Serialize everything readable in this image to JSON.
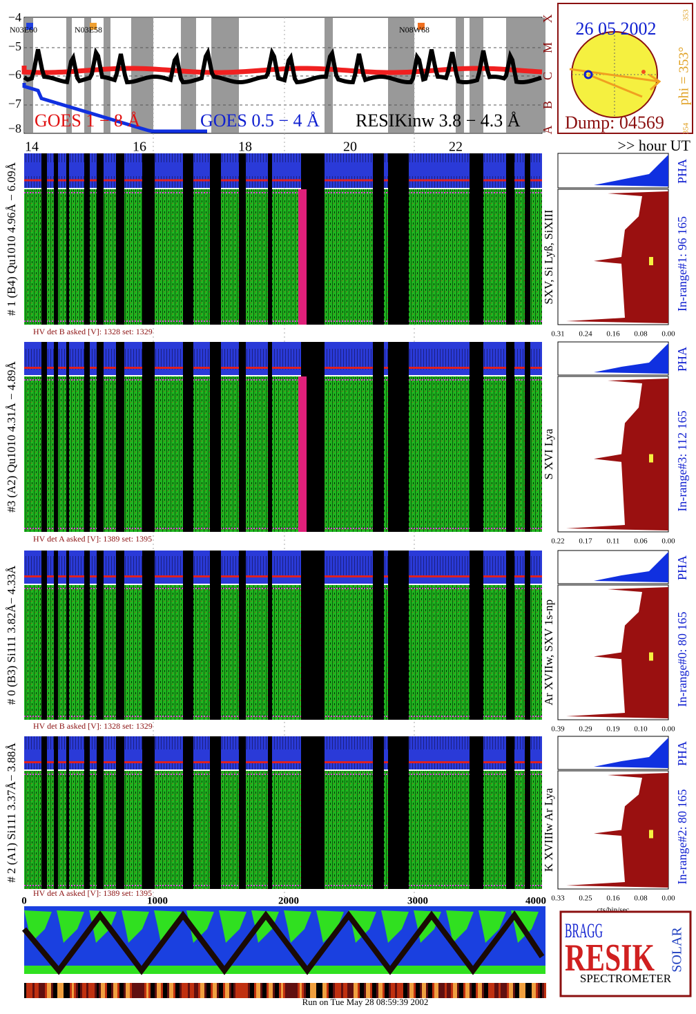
{
  "goes": {
    "yticks": [
      "−4",
      "−5",
      "−6",
      "−7",
      "−8"
    ],
    "class_labels": [
      "X",
      "M",
      "C",
      "B",
      "A"
    ],
    "regions": [
      "N03E60",
      "N03E58",
      "N08W68"
    ],
    "legend": [
      "GOES 1 − 8 Å",
      "GOES 0.5 − 4 Å",
      "RESIKinw 3.8 − 4.3 Å"
    ],
    "xticks": [
      "14",
      "16",
      "18",
      "20",
      "22"
    ],
    "x_unit": ">> hour UT"
  },
  "sun": {
    "date": "26 05 2002",
    "dump": "Dump: 04569",
    "phi": "phi = 353°",
    "phi_small": "353",
    "small": "354"
  },
  "detectors": [
    {
      "label": "# 1 (B4) Qu1010 4.96Å − 6.09Å",
      "lines": "SXV, Si Lyß, SiXIII",
      "hv": "HV det B asked [V]:  1328 set:  1329",
      "pha": "PHA",
      "range": "In-range#1:   96 165",
      "ticks": [
        "0.31",
        "0.24",
        "0.16",
        "0.08",
        "0.00"
      ]
    },
    {
      "label": "#3 (A2) Qu1010  4.31Å − 4.89Å",
      "lines": "S XVI Lya",
      "hv": "HV det A asked [V]:  1389 set:  1395",
      "pha": "PHA",
      "range": "In-range#3:   112 165",
      "ticks": [
        "0.22",
        "0.17",
        "0.11",
        "0.06",
        "0.00"
      ]
    },
    {
      "label": "# 0 (B3) Si111  3.82Å− 4.33Å",
      "lines": "Ar XVIIw,  SXV 1s-np",
      "hv": "HV det B asked [V]:  1328 set:  1329",
      "pha": "PHA",
      "range": "In-range#0:   80 165",
      "ticks": [
        "0.39",
        "0.29",
        "0.19",
        "0.10",
        "0.00"
      ]
    },
    {
      "label": "# 2 (A1) Si111  3.37Å− 3.88Å",
      "lines": "K XVIIIw  Ar Lya",
      "hv": "HV det A asked [V]:  1389 set:  1395",
      "pha": "PHA",
      "range": "In-range#2:   80 165",
      "ticks": [
        "0.33",
        "0.25",
        "0.16",
        "0.08",
        "0.00"
      ]
    }
  ],
  "bottom": {
    "xticks": [
      "0",
      "1000",
      "2000",
      "3000",
      "4000"
    ],
    "unit": "cts/bin/sec",
    "run": "Run on Tue May 28 08:59:39 2002"
  },
  "logo": {
    "bragg": "BRAGG",
    "resik": "RESIK",
    "solar": "SOLAR",
    "text": "SPECTROMETER"
  }
}
